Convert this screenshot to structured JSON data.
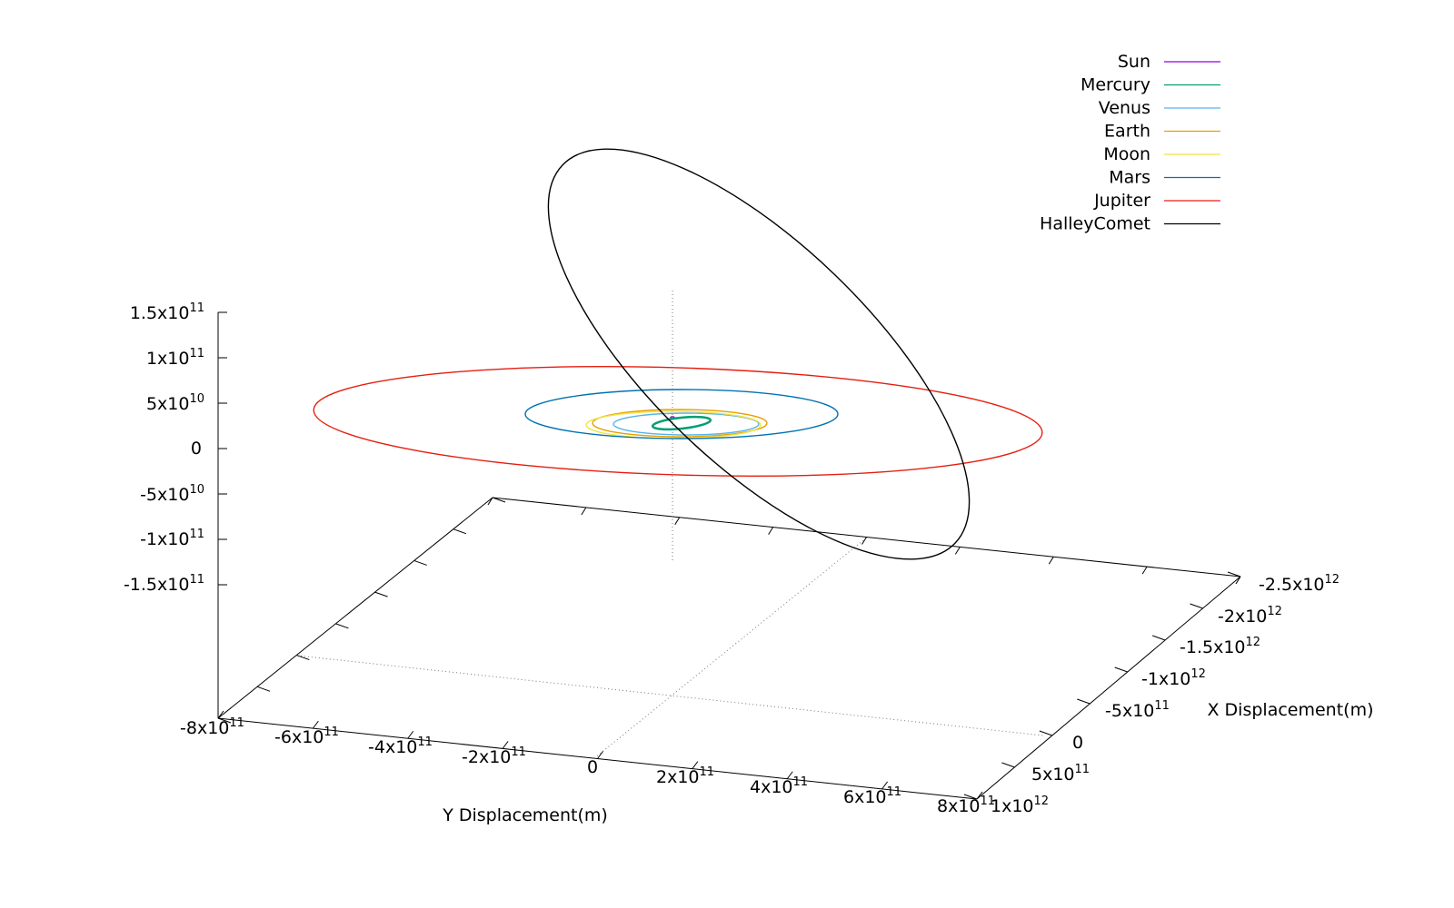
{
  "chart_data": {
    "type": "line",
    "subtype": "3d-orbit-plot",
    "title": "",
    "xlabel": "X Displacement(m)",
    "ylabel": "Y Displacement(m)",
    "zlabel": "",
    "x_ticks": [
      "-2.5x10^12",
      "-2x10^12",
      "-1.5x10^12",
      "-1x10^12",
      "-5x10^11",
      "0",
      "5x10^11",
      "1x10^12"
    ],
    "x_tick_values": [
      -2500000000000.0,
      -2000000000000.0,
      -1500000000000.0,
      -1000000000000.0,
      -500000000000.0,
      0,
      500000000000.0,
      1000000000000.0
    ],
    "y_ticks": [
      "-8x10^11",
      "-6x10^11",
      "-4x10^11",
      "-2x10^11",
      "0",
      "2x10^11",
      "4x10^11",
      "6x10^11",
      "8x10^11"
    ],
    "y_tick_values": [
      -800000000000.0,
      -600000000000.0,
      -400000000000.0,
      -200000000000.0,
      0,
      200000000000.0,
      400000000000.0,
      600000000000.0,
      800000000000.0
    ],
    "z_ticks": [
      "1.5x10^11",
      "1x10^11",
      "5x10^10",
      "0",
      "-5x10^10",
      "-1x10^11",
      "-1.5x10^11"
    ],
    "z_tick_values": [
      150000000000.0,
      100000000000.0,
      50000000000.0,
      0,
      -50000000000.0,
      -100000000000.0,
      -150000000000.0
    ],
    "xlim": [
      -2500000000000.0,
      1000000000000.0
    ],
    "ylim": [
      -800000000000.0,
      800000000000.0
    ],
    "zlim": [
      -150000000000.0,
      150000000000.0
    ],
    "grid": false,
    "legend_position": "top-right",
    "series": [
      {
        "name": "Sun",
        "color": "#9400d3",
        "orbit": {
          "a": 0,
          "e": 0,
          "inclination_deg": 0
        }
      },
      {
        "name": "Mercury",
        "color": "#009e73",
        "orbit": {
          "a": 58000000000.0,
          "e": 0.21,
          "inclination_deg": 7
        }
      },
      {
        "name": "Venus",
        "color": "#56b4e9",
        "orbit": {
          "a": 108000000000.0,
          "e": 0.007,
          "inclination_deg": 3.4
        }
      },
      {
        "name": "Earth",
        "color": "#e69f00",
        "orbit": {
          "a": 150000000000.0,
          "e": 0.017,
          "inclination_deg": 0
        }
      },
      {
        "name": "Moon",
        "color": "#f0e442",
        "orbit": {
          "a": 150000000000.0,
          "e": 0.02,
          "inclination_deg": 0
        }
      },
      {
        "name": "Mars",
        "color": "#0072b2",
        "orbit": {
          "a": 228000000000.0,
          "e": 0.093,
          "inclination_deg": 1.85
        }
      },
      {
        "name": "Jupiter",
        "color": "#e51e10",
        "orbit": {
          "a": 778000000000.0,
          "e": 0.048,
          "inclination_deg": 1.3
        }
      },
      {
        "name": "HalleyComet",
        "color": "#000000",
        "orbit": {
          "a": 2670000000000.0,
          "e": 0.967,
          "inclination_deg": 162
        }
      }
    ]
  }
}
